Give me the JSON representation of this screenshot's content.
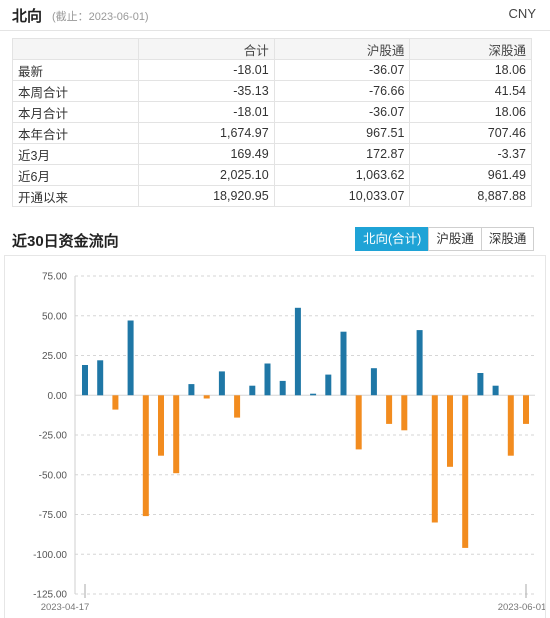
{
  "header": {
    "title": "北向",
    "asof": "(截止：2023-06-01)",
    "currency": "CNY"
  },
  "summary": {
    "columns": [
      "合计",
      "沪股通",
      "深股通"
    ],
    "rows": [
      {
        "label": "最新",
        "values": [
          "-18.01",
          "-36.07",
          "18.06"
        ]
      },
      {
        "label": "本周合计",
        "values": [
          "-35.13",
          "-76.66",
          "41.54"
        ]
      },
      {
        "label": "本月合计",
        "values": [
          "-18.01",
          "-36.07",
          "18.06"
        ]
      },
      {
        "label": "本年合计",
        "values": [
          "1,674.97",
          "967.51",
          "707.46"
        ]
      },
      {
        "label": "近3月",
        "values": [
          "169.49",
          "172.87",
          "-3.37"
        ]
      },
      {
        "label": "近6月",
        "values": [
          "2,025.10",
          "1,063.62",
          "961.49"
        ]
      },
      {
        "label": "开通以来",
        "values": [
          "18,920.95",
          "10,033.07",
          "8,887.88"
        ]
      }
    ]
  },
  "flow_section": {
    "title": "近30日资金流向",
    "tabs": [
      {
        "label": "北向(合计)",
        "active": true
      },
      {
        "label": "沪股通",
        "active": false
      },
      {
        "label": "深股通",
        "active": false
      }
    ]
  },
  "chart_data": {
    "type": "bar",
    "title": "",
    "xlabel": "",
    "ylabel": "",
    "ylim": [
      -125,
      75
    ],
    "yticks": [
      "75.00",
      "50.00",
      "25.00",
      "0.00",
      "-25.00",
      "-50.00",
      "-75.00",
      "-100.00",
      "-125.00"
    ],
    "x_labels": [
      "2023-04-17",
      "2023-06-01"
    ],
    "grid": true,
    "positive_color": "#1f77a6",
    "negative_color": "#f28c1f",
    "values": [
      19,
      22,
      -9,
      47,
      -76,
      -38,
      -49,
      7,
      -2,
      15,
      -14,
      6,
      20,
      9,
      55,
      1,
      13,
      40,
      -34,
      17,
      -18,
      -22,
      41,
      -80,
      -45,
      -96,
      14,
      6,
      -38,
      -18
    ]
  }
}
